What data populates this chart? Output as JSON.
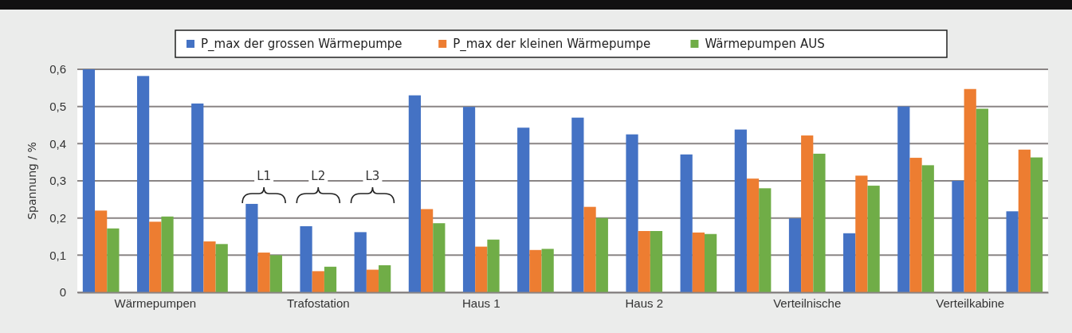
{
  "chart_data": {
    "type": "bar",
    "ylabel": "Spannung / %",
    "categories": [
      null,
      "Wärmepumpen",
      null,
      null,
      "Trafostation",
      null,
      null,
      "Haus 1",
      null,
      null,
      "Haus 2",
      null,
      null,
      "Verteilnische",
      null,
      null,
      "Verteilkabine",
      null
    ],
    "series": [
      {
        "name": "P_max der grossen Wärmepumpe",
        "color": "#4472c4",
        "values": [
          0.6,
          0.582,
          0.508,
          0.238,
          0.178,
          0.162,
          0.53,
          0.499,
          0.443,
          0.47,
          0.425,
          0.371,
          0.438,
          0.199,
          0.159,
          0.5,
          0.3,
          0.218
        ]
      },
      {
        "name": "P_max der kleinen Wärmepumpe",
        "color": "#ed7d31",
        "values": [
          0.22,
          0.19,
          0.137,
          0.107,
          0.057,
          0.061,
          0.224,
          0.123,
          0.114,
          0.23,
          0.165,
          0.161,
          0.306,
          0.422,
          0.314,
          0.362,
          0.547,
          0.384
        ]
      },
      {
        "name": "Wärmepumpen AUS",
        "color": "#70ad47",
        "values": [
          0.172,
          0.204,
          0.13,
          0.1,
          0.069,
          0.073,
          0.186,
          0.142,
          0.117,
          0.2,
          0.165,
          0.157,
          0.28,
          0.373,
          0.287,
          0.342,
          0.494,
          0.363
        ]
      }
    ],
    "ylim": [
      0,
      0.6
    ],
    "yticks": [
      0,
      {
        "value": 0.1,
        "label": "0,1"
      },
      {
        "value": 0.2,
        "label": "0,2"
      },
      {
        "value": 0.3,
        "label": "0,3"
      },
      {
        "value": 0.4,
        "label": "0,4"
      },
      {
        "value": 0.5,
        "label": "0,5"
      },
      {
        "value": 0.6,
        "label": "0,6"
      }
    ],
    "grid": "y",
    "legend": "top",
    "annotations": [
      "L1",
      "L2",
      "L3"
    ]
  }
}
